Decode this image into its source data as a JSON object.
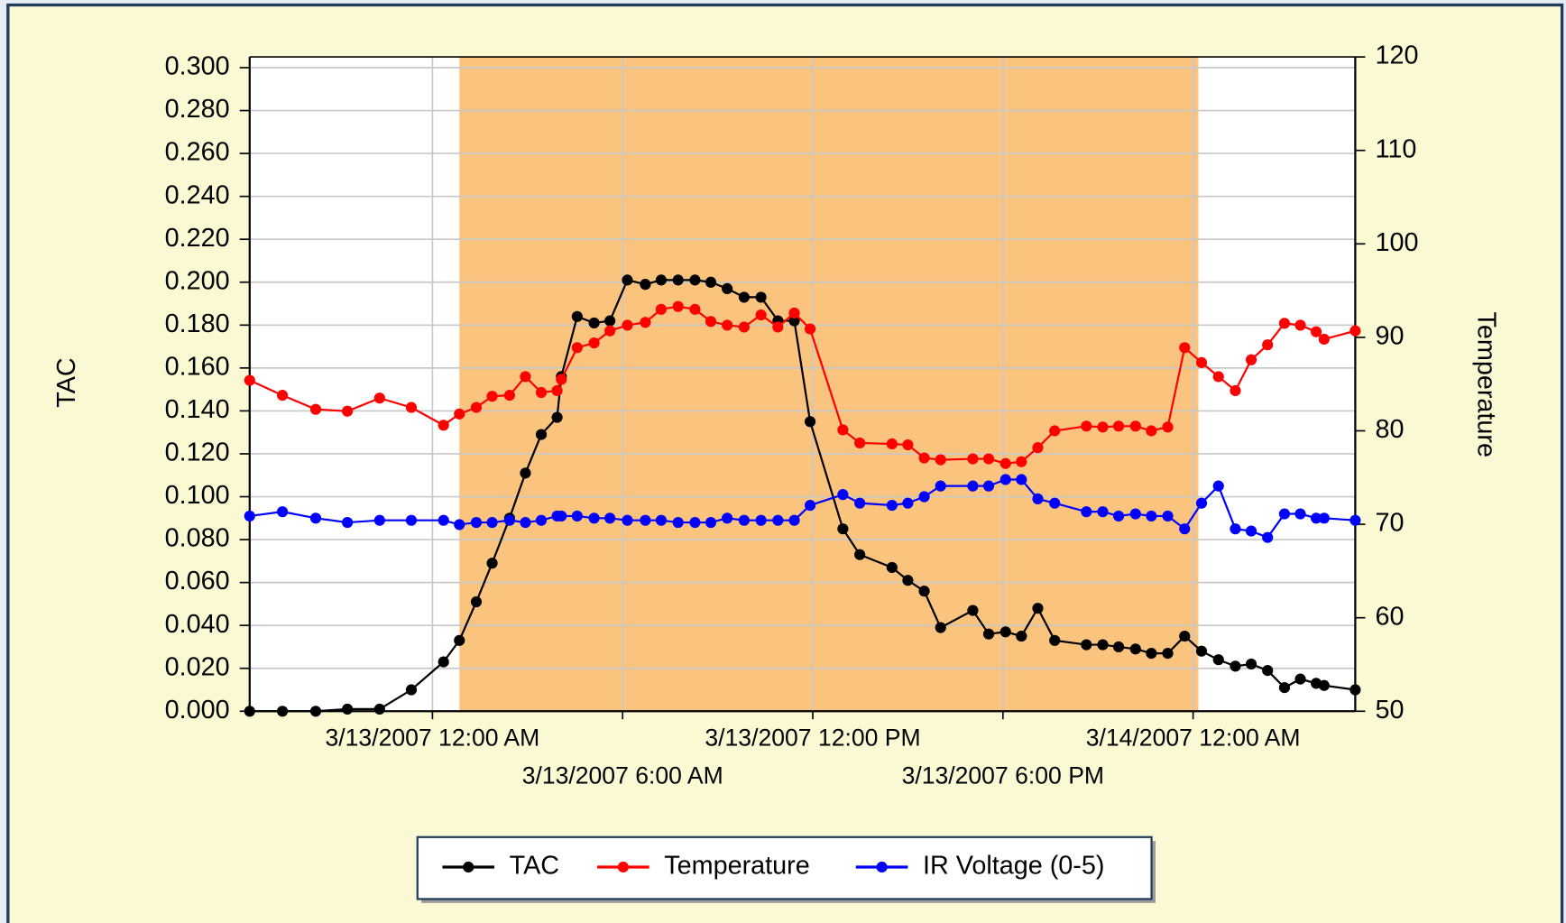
{
  "chart_data": {
    "type": "line",
    "y_label": "TAC",
    "y2_label": "Temperature",
    "x": [
      "2007-03-12T18:14",
      "2007-03-12T19:16",
      "2007-03-12T20:19",
      "2007-03-12T21:19",
      "2007-03-12T22:20",
      "2007-03-12T23:20",
      "2007-03-13T00:21",
      "2007-03-13T00:51",
      "2007-03-13T01:23",
      "2007-03-13T01:53",
      "2007-03-13T02:26",
      "2007-03-13T02:56",
      "2007-03-13T03:26",
      "2007-03-13T03:56",
      "2007-03-13T04:04",
      "2007-03-13T04:34",
      "2007-03-13T05:06",
      "2007-03-13T05:36",
      "2007-03-13T06:09",
      "2007-03-13T06:43",
      "2007-03-13T07:13",
      "2007-03-13T07:45",
      "2007-03-13T08:17",
      "2007-03-13T08:47",
      "2007-03-13T09:18",
      "2007-03-13T09:50",
      "2007-03-13T10:22",
      "2007-03-13T10:54",
      "2007-03-13T11:25",
      "2007-03-13T11:55",
      "2007-03-13T12:57",
      "2007-03-13T13:29",
      "2007-03-13T14:30",
      "2007-03-13T15:00",
      "2007-03-13T15:31",
      "2007-03-13T16:02",
      "2007-03-13T17:03",
      "2007-03-13T17:33",
      "2007-03-13T18:05",
      "2007-03-13T18:35",
      "2007-03-13T19:06",
      "2007-03-13T19:38",
      "2007-03-13T20:38",
      "2007-03-13T21:09",
      "2007-03-13T21:39",
      "2007-03-13T22:11",
      "2007-03-13T22:41",
      "2007-03-13T23:12",
      "2007-03-13T23:44",
      "2007-03-14T00:16",
      "2007-03-14T00:48",
      "2007-03-14T01:20",
      "2007-03-14T01:50",
      "2007-03-14T02:21",
      "2007-03-14T02:53",
      "2007-03-14T03:23",
      "2007-03-14T03:53",
      "2007-03-14T04:08",
      "2007-03-14T05:07"
    ],
    "series": [
      {
        "name": "TAC",
        "color": "#000000",
        "values": [
          0,
          0,
          0,
          0.001,
          0.001,
          0.01,
          0.023,
          0.033,
          0.051,
          0.069,
          0.09,
          0.111,
          0.129,
          0.137,
          0.156,
          0.184,
          0.181,
          0.182,
          0.201,
          0.199,
          0.201,
          0.201,
          0.201,
          0.2,
          0.197,
          0.193,
          0.193,
          0.182,
          0.182,
          0.135,
          0.085,
          0.073,
          0.067,
          0.061,
          0.056,
          0.039,
          0.047,
          0.036,
          0.037,
          0.035,
          0.048,
          0.033,
          0.031,
          0.031,
          0.03,
          0.029,
          0.027,
          0.027,
          0.035,
          0.028,
          0.024,
          0.021,
          0.022,
          0.019,
          0.011,
          0.015,
          0.013,
          0.012,
          0.01
        ]
      },
      {
        "name": "Temperature",
        "color": "#ff0000",
        "axis": "y2",
        "values": [
          85.4,
          83.8,
          82.3,
          82.1,
          83.5,
          82.5,
          80.6,
          81.8,
          82.5,
          83.7,
          83.8,
          85.8,
          84.1,
          84.3,
          85.5,
          88.9,
          89.4,
          90.7,
          91.3,
          91.6,
          93.0,
          93.3,
          93.0,
          91.7,
          91.3,
          91.1,
          92.4,
          91.1,
          92.6,
          90.9,
          80.1,
          78.7,
          78.6,
          78.5,
          77.1,
          76.9,
          77.0,
          77.0,
          76.5,
          76.7,
          78.2,
          80.0,
          80.5,
          80.4,
          80.5,
          80.5,
          80.0,
          80.4,
          88.9,
          87.3,
          85.8,
          84.3,
          87.6,
          89.2,
          91.5,
          91.3,
          90.6,
          89.8,
          90.7
        ]
      },
      {
        "name": "IR Voltage (0-5)",
        "color": "#0000ff",
        "values": [
          0.091,
          0.093,
          0.09,
          0.088,
          0.089,
          0.089,
          0.089,
          0.087,
          0.088,
          0.088,
          0.089,
          0.088,
          0.089,
          0.091,
          0.091,
          0.091,
          0.09,
          0.09,
          0.089,
          0.089,
          0.089,
          0.088,
          0.088,
          0.088,
          0.09,
          0.089,
          0.089,
          0.089,
          0.089,
          0.096,
          0.101,
          0.097,
          0.096,
          0.097,
          0.1,
          0.105,
          0.105,
          0.105,
          0.108,
          0.108,
          0.099,
          0.097,
          0.093,
          0.093,
          0.091,
          0.092,
          0.091,
          0.091,
          0.085,
          0.097,
          0.105,
          0.085,
          0.084,
          0.081,
          0.092,
          0.092,
          0.09,
          0.09,
          0.089
        ]
      }
    ],
    "xlim": [
      "2007-03-12T18:14",
      "2007-03-14T05:07"
    ],
    "xticks": [
      {
        "value": "2007-03-13T00:00",
        "label": "3/13/2007 12:00 AM"
      },
      {
        "value": "2007-03-13T06:00",
        "label": "3/13/2007 6:00 AM"
      },
      {
        "value": "2007-03-13T12:00",
        "label": "3/13/2007 12:00 PM"
      },
      {
        "value": "2007-03-13T18:00",
        "label": "3/13/2007 6:00 PM"
      },
      {
        "value": "2007-03-14T00:00",
        "label": "3/14/2007 12:00 AM"
      }
    ],
    "ylim": [
      0,
      0.305
    ],
    "yticks": [
      {
        "value": 0,
        "label": "0.000"
      },
      {
        "value": 0.02,
        "label": "0.020"
      },
      {
        "value": 0.04,
        "label": "0.040"
      },
      {
        "value": 0.06,
        "label": "0.060"
      },
      {
        "value": 0.08,
        "label": "0.080"
      },
      {
        "value": 0.1,
        "label": "0.100"
      },
      {
        "value": 0.12,
        "label": "0.120"
      },
      {
        "value": 0.14,
        "label": "0.140"
      },
      {
        "value": 0.16,
        "label": "0.160"
      },
      {
        "value": 0.18,
        "label": "0.180"
      },
      {
        "value": 0.2,
        "label": "0.200"
      },
      {
        "value": 0.22,
        "label": "0.220"
      },
      {
        "value": 0.24,
        "label": "0.240"
      },
      {
        "value": 0.26,
        "label": "0.260"
      },
      {
        "value": 0.28,
        "label": "0.280"
      },
      {
        "value": 0.3,
        "label": "0.300"
      }
    ],
    "y2lim": [
      50,
      120
    ],
    "y2ticks": [
      50,
      60,
      70,
      80,
      90,
      100,
      110,
      120
    ],
    "shaded_range": [
      "2007-03-13T00:51",
      "2007-03-14T00:10"
    ],
    "shaded_color": "#fbc47e",
    "grid": true,
    "legend": "bottom"
  }
}
